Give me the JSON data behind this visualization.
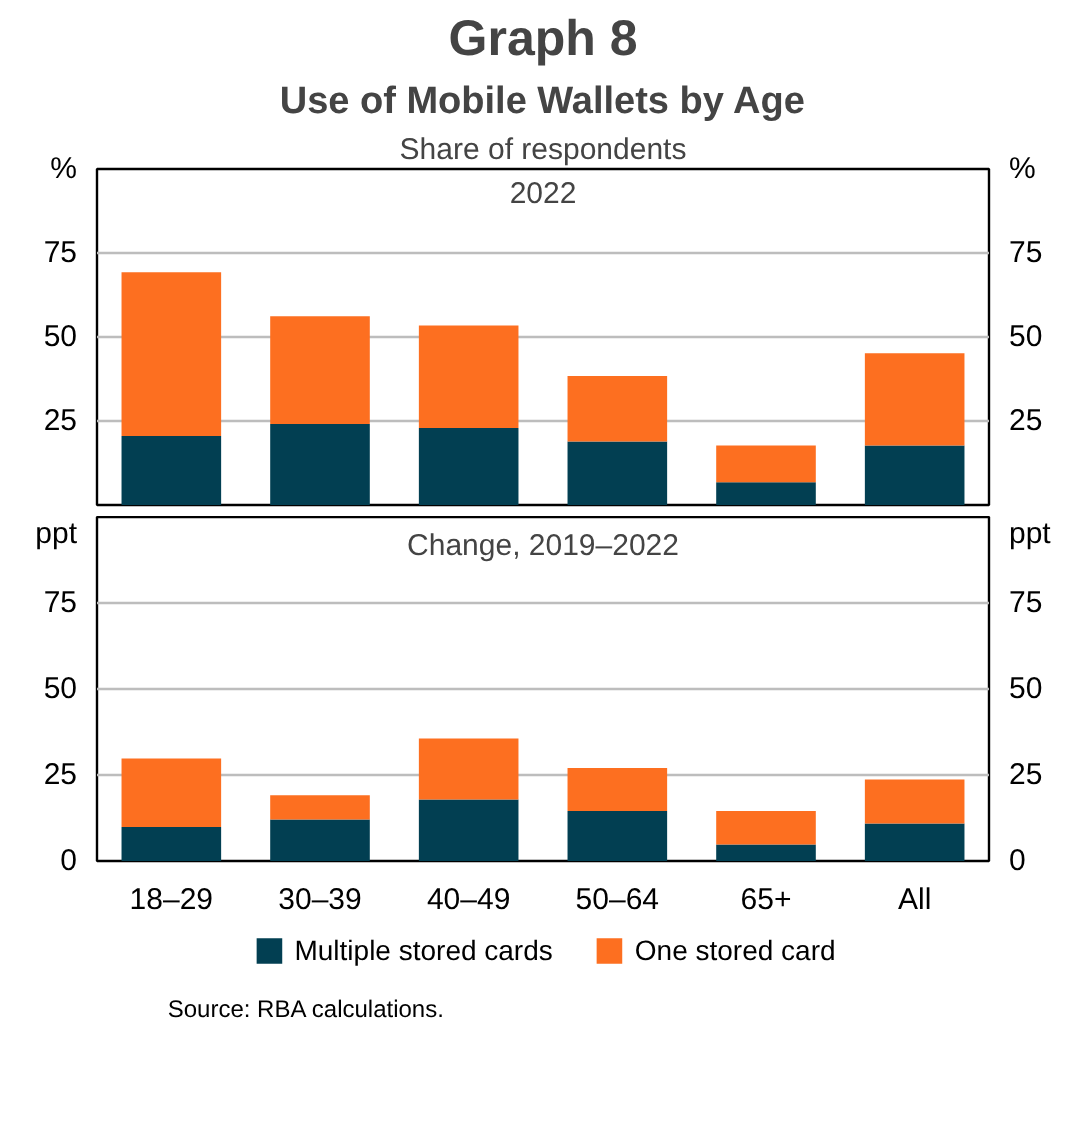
{
  "chart_data": [
    {
      "type": "bar",
      "title": "Graph 8",
      "subtitle": "Use of Mobile Wallets by Age",
      "annotations": [
        "Share of respondents",
        "2022"
      ],
      "stacked": true,
      "categories": [
        null,
        null,
        null,
        null,
        null,
        null
      ],
      "ylabel": "%",
      "y2label": "%",
      "ylim": [
        0,
        100
      ],
      "yticks": [
        {
          "value": 0,
          "label": null
        },
        25,
        50,
        75
      ],
      "y2lim": [
        0,
        100
      ],
      "y2ticks": [
        {
          "value": 0,
          "label": null
        },
        25,
        50,
        75
      ],
      "grid": "y",
      "tick_labels": "y",
      "series": [
        {
          "color": "#023f52",
          "values": [
            20.5,
            24.1,
            22.9,
            18.9,
            6.8,
            17.7
          ]
        },
        {
          "color": "#fd6f20",
          "values": [
            48.8,
            32.1,
            30.5,
            19.5,
            10.9,
            27.5
          ]
        }
      ]
    },
    {
      "type": "bar",
      "title": "Change, 2019–2022",
      "stacked": true,
      "categories": [
        "18–29",
        "30–39",
        "40–49",
        "50–64",
        "65+",
        "All"
      ],
      "ylabel": "ppt",
      "y2label": "ppt",
      "ylim": [
        0,
        100
      ],
      "yticks": [
        0,
        25,
        50,
        75
      ],
      "y2lim": [
        0,
        100
      ],
      "y2ticks": [
        0,
        25,
        50,
        75
      ],
      "grid": "y",
      "legend": "bottom",
      "annotations": [
        "Source:   RBA calculations."
      ],
      "series": [
        {
          "name": "Multiple stored cards",
          "color": "#023f52",
          "values": [
            9.9,
            12.1,
            17.9,
            14.5,
            4.8,
            10.9
          ]
        },
        {
          "name": "One stored card",
          "color": "#fd6f20",
          "values": [
            19.9,
            7.0,
            17.7,
            12.5,
            9.7,
            12.8
          ]
        }
      ]
    }
  ]
}
